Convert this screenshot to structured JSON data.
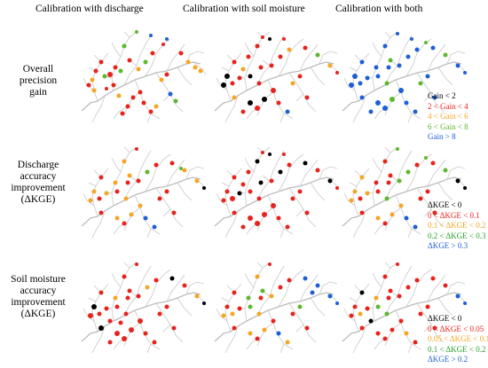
{
  "columns": [
    "Calibration with discharge",
    "Calibration with soil moisture",
    "Calibration with both"
  ],
  "rows": [
    [
      "Overall",
      "precision",
      "gain"
    ],
    [
      "Discharge",
      "accuracy",
      "improvement",
      "(ΔKGE)"
    ],
    [
      "Soil moisture",
      "accuracy",
      "improvement",
      "(ΔKGE)"
    ]
  ],
  "legends": [
    {
      "items": [
        {
          "label": "Gain < 2",
          "color": "#000000"
        },
        {
          "label": "2 < Gain < 4",
          "color": "#e8231c"
        },
        {
          "label": "4 < Gain < 6",
          "color": "#f5a623"
        },
        {
          "label": "6 < Gain < 8",
          "color": "#5cb82c"
        },
        {
          "label": "Gain > 8",
          "color": "#1f5fd6"
        }
      ]
    },
    {
      "items": [
        {
          "label": "ΔKGE < 0",
          "color": "#000000"
        },
        {
          "label": "0 < ΔKGE < 0.1",
          "color": "#e8231c"
        },
        {
          "label": "0.1 < ΔKGE < 0.2",
          "color": "#f5a623"
        },
        {
          "label": "0.2 < ΔKGE < 0.3",
          "color": "#2ca02c"
        },
        {
          "label": "ΔKGE > 0.3",
          "color": "#1f5fd6"
        }
      ]
    },
    {
      "items": [
        {
          "label": "ΔKGE < 0",
          "color": "#000000"
        },
        {
          "label": "0 < ΔKGE < 0.05",
          "color": "#e8231c"
        },
        {
          "label": "0.05 < ΔKGE < 0.1",
          "color": "#f5a623"
        },
        {
          "label": "0.1 < ΔKGE < 0.2",
          "color": "#2ca02c"
        },
        {
          "label": "ΔKGE > 0.2",
          "color": "#1f5fd6"
        }
      ]
    }
  ]
}
